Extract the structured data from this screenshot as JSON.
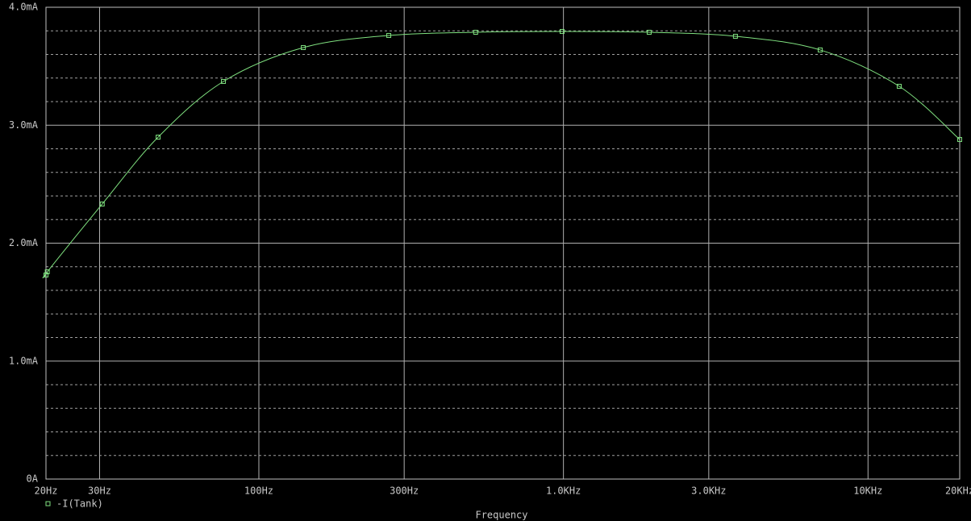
{
  "chart_data": {
    "type": "line",
    "x_label": "Frequency",
    "log_x": true,
    "x": [
      20,
      20.2,
      30.6,
      46.7,
      76.5,
      139.9,
      267,
      515,
      990,
      1912,
      3670,
      6965,
      12660,
      20000
    ],
    "series": [
      {
        "name": "-I(Tank)",
        "color": "#7fe07f",
        "values": [
          1.73,
          1.757,
          2.332,
          2.899,
          3.371,
          3.658,
          3.761,
          3.788,
          3.795,
          3.788,
          3.754,
          3.638,
          3.33,
          2.879
        ]
      }
    ],
    "xlim": [
      20,
      20000
    ],
    "xticks": [
      {
        "value": 20,
        "label": "20Hz"
      },
      {
        "value": 30,
        "label": "30Hz"
      },
      {
        "value": 100,
        "label": "100Hz"
      },
      {
        "value": 300,
        "label": "300Hz"
      },
      {
        "value": 1000,
        "label": "1.0KHz"
      },
      {
        "value": 3000,
        "label": "3.0KHz"
      },
      {
        "value": 10000,
        "label": "10KHz"
      },
      {
        "value": 20000,
        "label": "20KHz"
      }
    ],
    "ylim": [
      0,
      4
    ],
    "yticks": [
      {
        "value": 0,
        "label": "0A"
      },
      {
        "value": 1,
        "label": "1.0mA"
      },
      {
        "value": 2,
        "label": "2.0mA"
      },
      {
        "value": 3,
        "label": "3.0mA"
      },
      {
        "value": 4,
        "label": "4.0mA"
      }
    ],
    "y_minor_ticks": [
      0.2,
      0.4,
      0.6,
      0.8,
      1.2,
      1.4,
      1.6,
      1.8,
      2.2,
      2.4,
      2.6,
      2.8,
      3.2,
      3.4,
      3.6,
      3.8
    ],
    "grid": true
  }
}
